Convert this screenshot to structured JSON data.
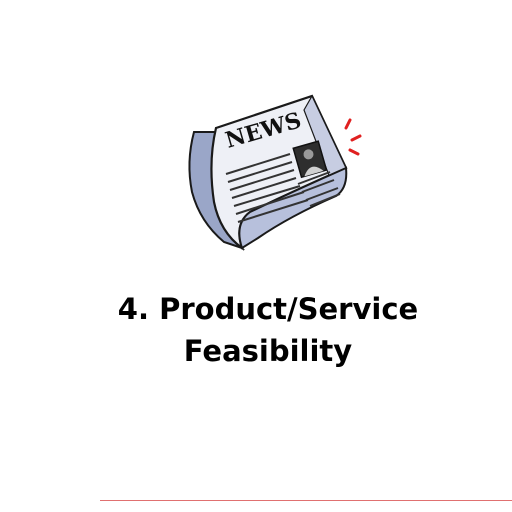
{
  "slide": {
    "title_line1": "4. Product/Service",
    "title_line2": "Feasibility",
    "image": {
      "icon": "newspaper-icon",
      "masthead": "NEWS"
    }
  },
  "colors": {
    "background": "#ffffff",
    "title": "#000000",
    "footer_rule": "#e07070",
    "paper_shadow": "#9aa6c8",
    "alert_red": "#e02020"
  }
}
